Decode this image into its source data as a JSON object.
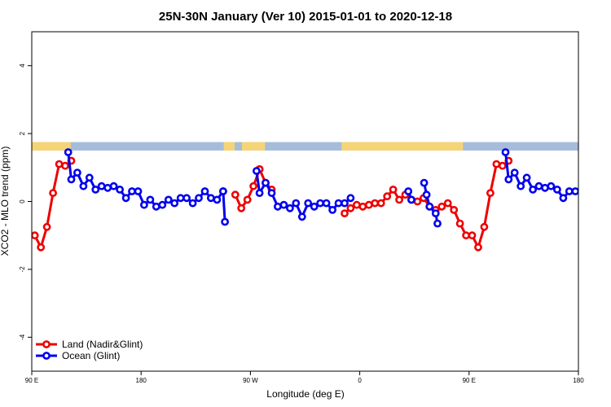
{
  "chart_data": {
    "type": "line",
    "title": "25N-30N January (Ver 10)   2015-01-01 to 2020-12-18",
    "xlabel": "Longitude (deg E)",
    "ylabel": "XCO2 - MLO trend (ppm)",
    "xlim": [
      90,
      540
    ],
    "ylim": [
      -5,
      5
    ],
    "x_ticks": [
      {
        "value": 90,
        "label": "90 E"
      },
      {
        "value": 180,
        "label": "180"
      },
      {
        "value": 270,
        "label": "90 W"
      },
      {
        "value": 360,
        "label": "0"
      },
      {
        "value": 450,
        "label": "90 E"
      },
      {
        "value": 540,
        "label": "180"
      }
    ],
    "y_ticks": [
      {
        "value": -4,
        "label": "-4"
      },
      {
        "value": -2,
        "label": "-2"
      },
      {
        "value": 0,
        "label": "0"
      },
      {
        "value": 2,
        "label": "2"
      },
      {
        "value": 4,
        "label": "4"
      }
    ],
    "legend_position": "bottom-left",
    "surface_strip": {
      "y_range": [
        1.5,
        1.75
      ],
      "ocean_color": "#a5bddb",
      "land_color": "#f5d477",
      "land_segments": [
        [
          90,
          122
        ],
        [
          248,
          257
        ],
        [
          263,
          282
        ],
        [
          345,
          445
        ]
      ]
    },
    "series": [
      {
        "name": "Land (Nadir&Glint)",
        "color": "#ee0000",
        "segments": [
          [
            [
              92.5,
              -1.0
            ],
            [
              97.5,
              -1.35
            ],
            [
              102.5,
              -0.75
            ],
            [
              107.5,
              0.25
            ],
            [
              112.5,
              1.1
            ],
            [
              117.5,
              1.05
            ],
            [
              122.5,
              1.2
            ]
          ],
          [
            [
              257.5,
              0.2
            ],
            [
              262.5,
              -0.2
            ],
            [
              267.5,
              0.05
            ],
            [
              272.5,
              0.45
            ],
            [
              277.5,
              0.95
            ]
          ],
          [
            [
              277.5,
              0.95
            ],
            [
              282.5,
              0.55
            ],
            [
              287.5,
              0.35
            ]
          ],
          [
            [
              347.5,
              -0.35
            ],
            [
              352.5,
              -0.2
            ],
            [
              357.5,
              -0.1
            ],
            [
              362.5,
              -0.15
            ],
            [
              367.5,
              -0.1
            ],
            [
              372.5,
              -0.05
            ],
            [
              377.5,
              -0.05
            ],
            [
              382.5,
              0.15
            ],
            [
              387.5,
              0.35
            ],
            [
              392.5,
              0.05
            ],
            [
              397.5,
              0.2
            ],
            [
              402.5,
              0.05
            ],
            [
              407.5,
              0.0
            ],
            [
              412.5,
              0.1
            ],
            [
              417.5,
              -0.15
            ],
            [
              422.5,
              -0.25
            ],
            [
              427.5,
              -0.15
            ],
            [
              432.5,
              -0.05
            ],
            [
              437.5,
              -0.25
            ],
            [
              442.5,
              -0.65
            ],
            [
              447.5,
              -1.0
            ],
            [
              452.5,
              -1.0
            ],
            [
              457.5,
              -1.35
            ],
            [
              462.5,
              -0.75
            ],
            [
              467.5,
              0.25
            ],
            [
              472.5,
              1.1
            ],
            [
              477.5,
              1.05
            ],
            [
              482.5,
              1.2
            ]
          ]
        ]
      },
      {
        "name": "Ocean (Glint)",
        "color": "#0000ee",
        "segments": [
          [
            [
              120,
              1.45
            ],
            [
              122.5,
              0.65
            ],
            [
              127.5,
              0.85
            ],
            [
              132.5,
              0.45
            ],
            [
              137.5,
              0.7
            ],
            [
              142.5,
              0.35
            ],
            [
              147.5,
              0.45
            ],
            [
              152.5,
              0.4
            ],
            [
              157.5,
              0.45
            ],
            [
              162.5,
              0.35
            ],
            [
              167.5,
              0.1
            ],
            [
              172.5,
              0.3
            ],
            [
              177.5,
              0.3
            ],
            [
              182.5,
              -0.1
            ],
            [
              187.5,
              0.05
            ],
            [
              192.5,
              -0.15
            ],
            [
              197.5,
              -0.1
            ],
            [
              202.5,
              0.05
            ],
            [
              207.5,
              -0.05
            ],
            [
              212.5,
              0.1
            ],
            [
              217.5,
              0.1
            ],
            [
              222.5,
              -0.05
            ],
            [
              227.5,
              0.1
            ],
            [
              232.5,
              0.3
            ],
            [
              237.5,
              0.1
            ],
            [
              242.5,
              0.05
            ],
            [
              247.5,
              0.3
            ]
          ],
          [
            [
              247.5,
              0.3
            ],
            [
              249,
              -0.6
            ]
          ],
          [
            [
              275,
              0.9
            ],
            [
              277.5,
              0.25
            ],
            [
              282.5,
              0.55
            ],
            [
              287.5,
              0.25
            ],
            [
              292.5,
              -0.15
            ],
            [
              297.5,
              -0.1
            ],
            [
              302.5,
              -0.2
            ],
            [
              307.5,
              -0.05
            ],
            [
              312.5,
              -0.45
            ],
            [
              317.5,
              -0.05
            ],
            [
              322.5,
              -0.15
            ],
            [
              327.5,
              -0.05
            ],
            [
              332.5,
              -0.05
            ],
            [
              337.5,
              -0.25
            ],
            [
              342.5,
              -0.05
            ],
            [
              347.5,
              -0.05
            ],
            [
              352.5,
              0.1
            ]
          ],
          [
            [
              400,
              0.3
            ],
            [
              402.5,
              0.05
            ]
          ],
          [
            [
              413,
              0.55
            ],
            [
              415,
              0.2
            ],
            [
              417.5,
              -0.15
            ],
            [
              422.5,
              -0.35
            ],
            [
              424,
              -0.65
            ]
          ],
          [
            [
              480,
              1.45
            ],
            [
              482.5,
              0.65
            ],
            [
              487.5,
              0.85
            ],
            [
              492.5,
              0.45
            ],
            [
              497.5,
              0.7
            ],
            [
              502.5,
              0.35
            ],
            [
              507.5,
              0.45
            ],
            [
              512.5,
              0.4
            ],
            [
              517.5,
              0.45
            ],
            [
              522.5,
              0.35
            ],
            [
              527.5,
              0.1
            ],
            [
              532.5,
              0.3
            ],
            [
              537.5,
              0.3
            ]
          ]
        ]
      }
    ]
  }
}
